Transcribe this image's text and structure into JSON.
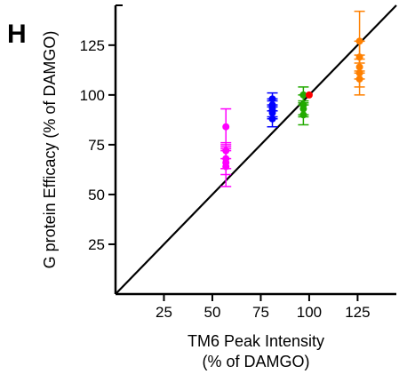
{
  "panel_label": "H",
  "chart_data": {
    "type": "scatter",
    "title": "",
    "xlabel_line1": "TM6 Peak Intensity",
    "xlabel_line2": "(% of DAMGO)",
    "ylabel": "G protein Efficacy (% of DAMGO)",
    "xlim": [
      0,
      145
    ],
    "ylim": [
      0,
      145
    ],
    "xticks": [
      25,
      50,
      75,
      100,
      125
    ],
    "yticks": [
      25,
      50,
      75,
      100,
      125
    ],
    "grid": false,
    "reference_line": {
      "from": [
        0,
        0
      ],
      "to": [
        145,
        145
      ],
      "color": "#000000"
    },
    "series": [
      {
        "color": "#ff00ff",
        "points": [
          {
            "x": 57,
            "y": 84,
            "err": 9
          },
          {
            "x": 57,
            "y": 72,
            "err": 4
          },
          {
            "x": 57,
            "y": 68,
            "err": 5
          },
          {
            "x": 57,
            "y": 66,
            "err": 6
          },
          {
            "x": 57,
            "y": 64,
            "err": 10
          }
        ]
      },
      {
        "color": "#0000ff",
        "points": [
          {
            "x": 81,
            "y": 98,
            "err": 3
          },
          {
            "x": 81,
            "y": 95,
            "err": 3
          },
          {
            "x": 81,
            "y": 93,
            "err": 4
          },
          {
            "x": 81,
            "y": 91,
            "err": 3
          },
          {
            "x": 81,
            "y": 88,
            "err": 4
          }
        ]
      },
      {
        "color": "#22aa00",
        "points": [
          {
            "x": 97,
            "y": 100,
            "err": 4
          },
          {
            "x": 97,
            "y": 95,
            "err": 5
          },
          {
            "x": 97,
            "y": 93,
            "err": 4
          },
          {
            "x": 97,
            "y": 90,
            "err": 5
          }
        ]
      },
      {
        "color": "#ff0000",
        "points": [
          {
            "x": 100,
            "y": 100,
            "err": 0
          }
        ]
      },
      {
        "color": "#ff8000",
        "points": [
          {
            "x": 126,
            "y": 127,
            "err": 15
          },
          {
            "x": 126,
            "y": 119,
            "err": 8
          },
          {
            "x": 126,
            "y": 114,
            "err": 6
          },
          {
            "x": 126,
            "y": 111,
            "err": 7
          },
          {
            "x": 126,
            "y": 108,
            "err": 8
          }
        ]
      }
    ]
  }
}
